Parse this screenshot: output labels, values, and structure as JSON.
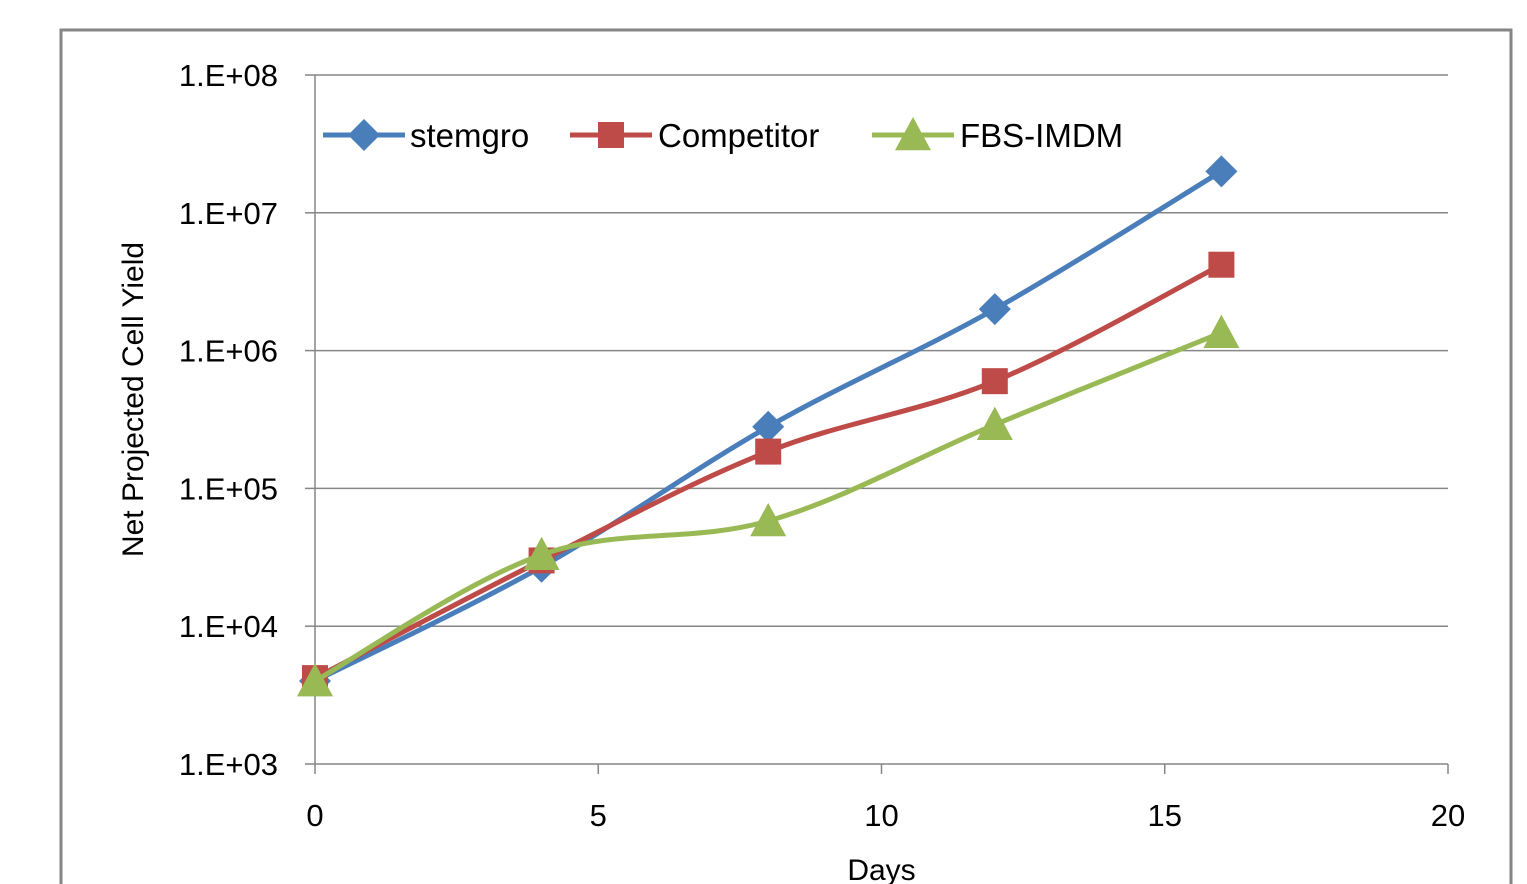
{
  "chart_data": {
    "type": "line",
    "title": "",
    "xlabel": "Days",
    "ylabel": "Net Projected Cell Yield",
    "x": [
      0,
      4,
      8,
      12,
      16
    ],
    "xlim": [
      0,
      20
    ],
    "xticks": [
      0,
      5,
      10,
      15,
      20
    ],
    "x_tick_labels": [
      "0",
      "5",
      "10",
      "15",
      "20"
    ],
    "yscale": "log",
    "ylim": [
      1000,
      100000000
    ],
    "yticks": [
      1000,
      10000,
      100000,
      1000000,
      10000000,
      100000000
    ],
    "y_tick_labels": [
      "1.E+03",
      "1.E+04",
      "1.E+05",
      "1.E+06",
      "1.E+07",
      "1.E+08"
    ],
    "grid": "horizontal major gridlines",
    "legend_position": "top-left, inside plot",
    "smoothed_lines": true,
    "series": [
      {
        "name": "stemgro",
        "marker": "diamond",
        "color": "#4A7EBB",
        "values": [
          4000,
          27000,
          280000,
          2000000,
          20000000
        ]
      },
      {
        "name": "Competitor",
        "marker": "square",
        "color": "#BE4B48",
        "values": [
          4200,
          30000,
          185000,
          600000,
          4200000
        ]
      },
      {
        "name": "FBS-IMDM",
        "marker": "triangle",
        "color": "#98B954",
        "values": [
          4000,
          33000,
          58000,
          290000,
          1350000
        ]
      }
    ]
  }
}
